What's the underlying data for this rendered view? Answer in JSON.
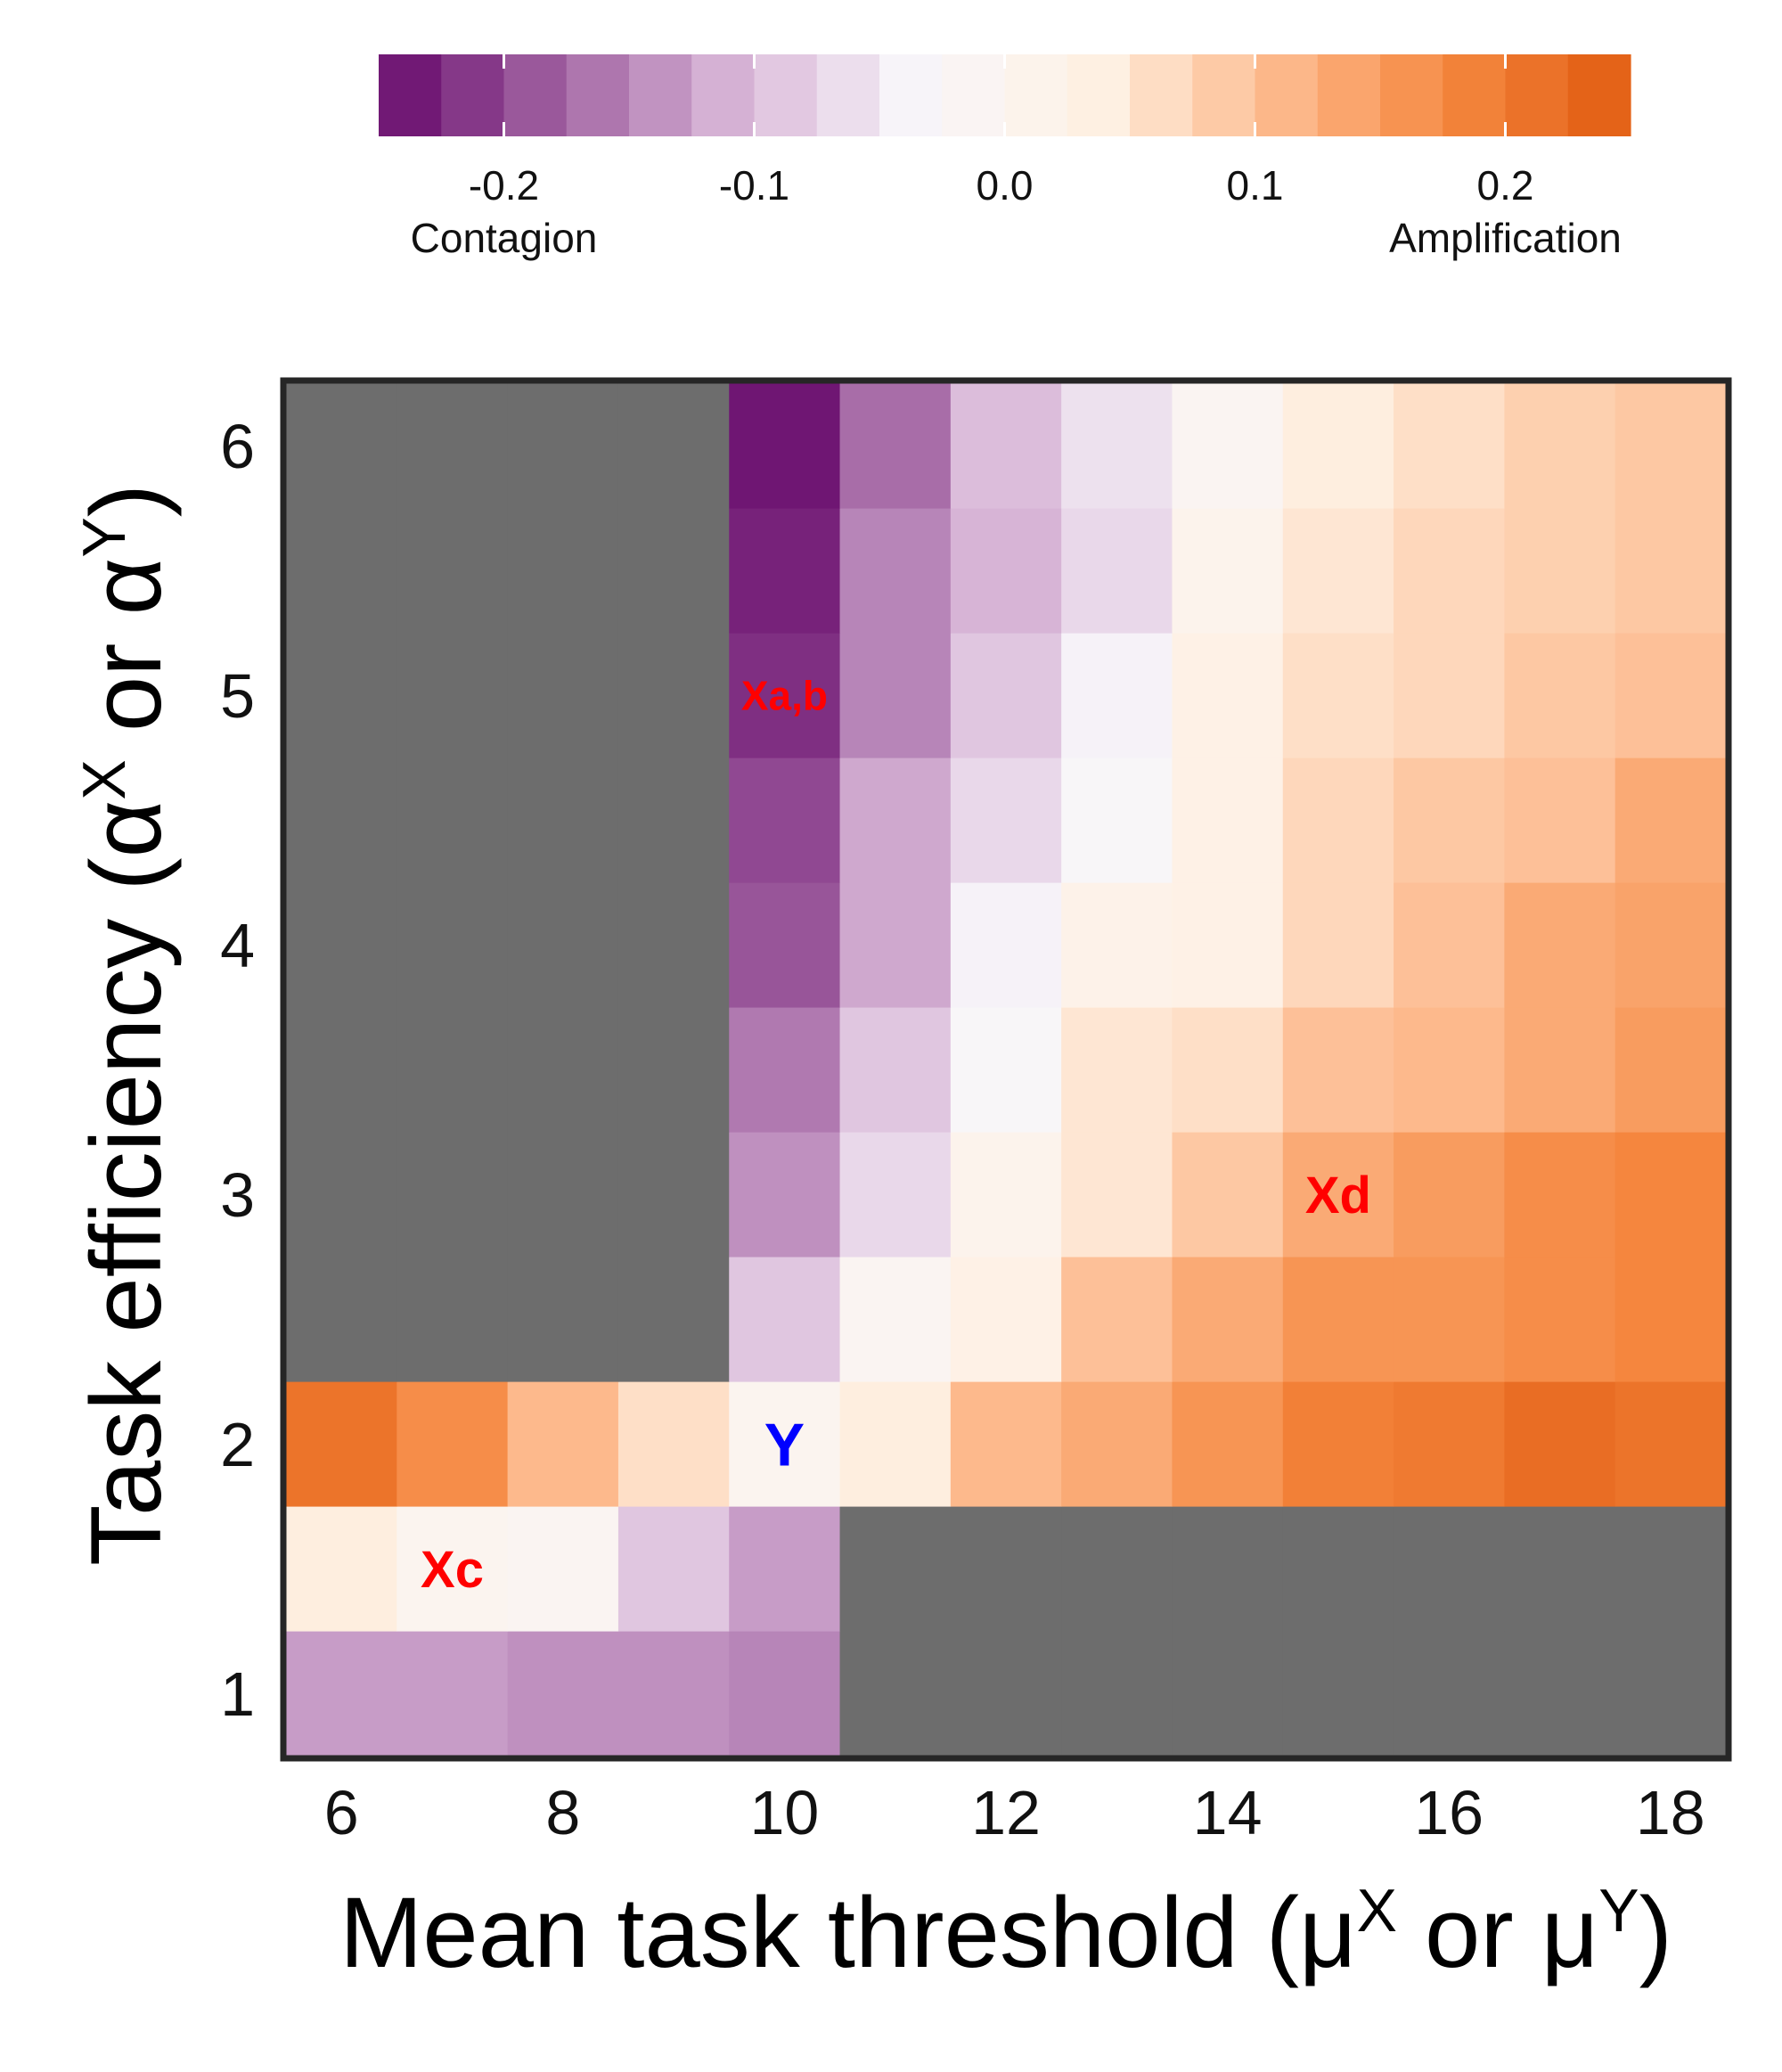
{
  "chart_data": {
    "type": "heatmap",
    "title": "",
    "xlabel": "Mean task threshold (μ",
    "xlabel_sup1": "X",
    "xlabel_mid": " or μ",
    "xlabel_sup2": "Y",
    "xlabel_end": ")",
    "ylabel": "Task efficiency (α",
    "ylabel_sup1": "X",
    "ylabel_mid": " or α",
    "ylabel_sup2": "Y",
    "ylabel_end": ")",
    "x": [
      6,
      7,
      8,
      9,
      10,
      11,
      12,
      13,
      14,
      15,
      16,
      17,
      18
    ],
    "y": [
      1,
      1.5,
      2,
      2.5,
      3,
      3.5,
      4,
      4.5,
      5,
      5.5,
      6
    ],
    "xlim": [
      5.5,
      18.5
    ],
    "ylim": [
      0.75,
      6.25
    ],
    "x_ticks": [
      "6",
      "8",
      "10",
      "12",
      "14",
      "16",
      "18"
    ],
    "y_ticks": [
      "1",
      "2",
      "3",
      "4",
      "5",
      "6"
    ],
    "missing_color": "#6d6d6d",
    "values": [
      [
        -0.13,
        -0.13,
        -0.14,
        -0.14,
        -0.15,
        null,
        null,
        null,
        null,
        null,
        null,
        null,
        null
      ],
      [
        0.04,
        0.0,
        -0.01,
        -0.09,
        -0.13,
        null,
        null,
        null,
        null,
        null,
        null,
        null,
        null
      ],
      [
        0.21,
        0.17,
        0.11,
        0.06,
        0.0,
        0.04,
        0.11,
        0.13,
        0.16,
        0.19,
        0.2,
        0.22,
        0.21
      ],
      [
        null,
        null,
        null,
        null,
        -0.09,
        -0.01,
        0.03,
        0.1,
        0.13,
        0.16,
        0.16,
        0.17,
        0.18
      ],
      [
        null,
        null,
        null,
        null,
        -0.14,
        -0.07,
        0.01,
        0.05,
        0.09,
        0.13,
        0.15,
        0.17,
        0.18
      ],
      [
        null,
        null,
        null,
        null,
        -0.16,
        -0.09,
        -0.03,
        0.05,
        0.06,
        0.1,
        0.11,
        0.13,
        0.15
      ],
      [
        null,
        null,
        null,
        null,
        -0.19,
        -0.12,
        -0.04,
        0.02,
        0.03,
        0.07,
        0.1,
        0.13,
        0.14
      ],
      [
        null,
        null,
        null,
        null,
        -0.2,
        -0.12,
        -0.07,
        -0.03,
        0.03,
        0.07,
        0.09,
        0.1,
        0.13
      ],
      [
        null,
        null,
        null,
        null,
        -0.22,
        -0.15,
        -0.09,
        -0.04,
        0.03,
        0.06,
        0.07,
        0.09,
        0.1
      ],
      [
        null,
        null,
        null,
        null,
        -0.23,
        -0.15,
        -0.11,
        -0.07,
        0.01,
        0.05,
        0.07,
        0.08,
        0.09
      ],
      [
        null,
        null,
        null,
        null,
        -0.24,
        -0.17,
        -0.1,
        -0.06,
        -0.01,
        0.04,
        0.06,
        0.08,
        0.09
      ]
    ],
    "colorbar": {
      "range": [
        -0.25,
        0.25
      ],
      "ticks": [
        "-0.2",
        "-0.1",
        "0.0",
        "0.1",
        "0.2"
      ],
      "tick_values": [
        -0.2,
        -0.1,
        0.0,
        0.1,
        0.2
      ],
      "low_label": "Contagion",
      "high_label": "Amplification",
      "stops": [
        "#67096b",
        "#a163a2",
        "#d9b7d8",
        "#f8f6fa",
        "#fef1e4",
        "#fdbb8f",
        "#f5873f",
        "#e05b10"
      ]
    },
    "annotations": [
      {
        "text": "Xa,b",
        "x": 10,
        "y": 5,
        "color": "#ff0000"
      },
      {
        "text": "Xd",
        "x": 15,
        "y": 3,
        "color": "#ff0000"
      },
      {
        "text": "Y",
        "x": 10,
        "y": 2,
        "color": "#0000ff"
      },
      {
        "text": "Xc",
        "x": 7,
        "y": 1.5,
        "color": "#ff0000"
      }
    ]
  }
}
